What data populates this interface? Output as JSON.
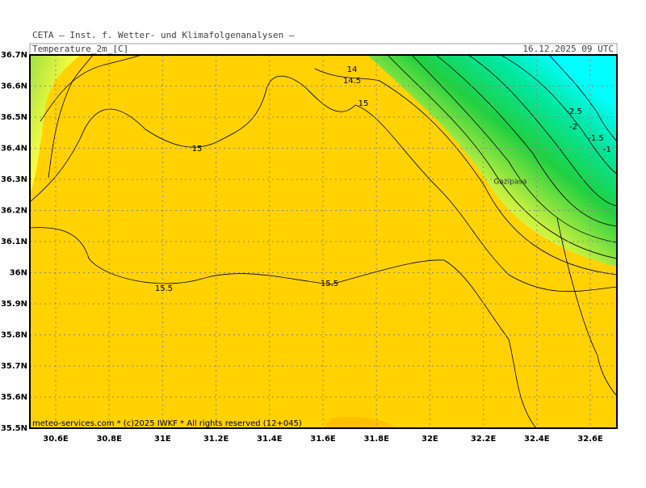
{
  "header": {
    "title": "CETA — Inst. f. Wetter- und Klimafolgenanalysen —",
    "variable": "Temperature_2m_[C]",
    "time": "16.12.2025 09 UTC"
  },
  "map": {
    "lat_ticks": [
      {
        "value": 36.7,
        "label": "36.7N"
      },
      {
        "value": 36.6,
        "label": "36.6N"
      },
      {
        "value": 36.5,
        "label": "36.5N"
      },
      {
        "value": 36.4,
        "label": "36.4N"
      },
      {
        "value": 36.3,
        "label": "36.3N"
      },
      {
        "value": 36.2,
        "label": "36.2N"
      },
      {
        "value": 36.1,
        "label": "36.1N"
      },
      {
        "value": 36,
        "label": "36N"
      },
      {
        "value": 35.9,
        "label": "35.9N"
      },
      {
        "value": 35.8,
        "label": "35.8N"
      },
      {
        "value": 35.7,
        "label": "35.7N"
      },
      {
        "value": 35.6,
        "label": "35.6N"
      },
      {
        "value": 35.5,
        "label": "35.5N"
      }
    ],
    "lon_ticks": [
      {
        "value": 30.6,
        "label": "30.6E"
      },
      {
        "value": 30.8,
        "label": "30.8E"
      },
      {
        "value": 31,
        "label": "31E"
      },
      {
        "value": 31.2,
        "label": "31.2E"
      },
      {
        "value": 31.4,
        "label": "31.4E"
      },
      {
        "value": 31.6,
        "label": "31.6E"
      },
      {
        "value": 31.8,
        "label": "31.8E"
      },
      {
        "value": 32,
        "label": "32E"
      },
      {
        "value": 32.2,
        "label": "32.2E"
      },
      {
        "value": 32.4,
        "label": "32.4E"
      },
      {
        "value": 32.6,
        "label": "32.6E"
      }
    ],
    "contour_labels": [
      "14",
      "14.5",
      "15",
      "15",
      "-2.5",
      "-2",
      "-1.5",
      "-1",
      "15.5",
      "15.5"
    ],
    "place": "Gazipasa",
    "footer": "meteo-services.com * (c)2025 IWKF * All rights reserved (12+045)"
  }
}
